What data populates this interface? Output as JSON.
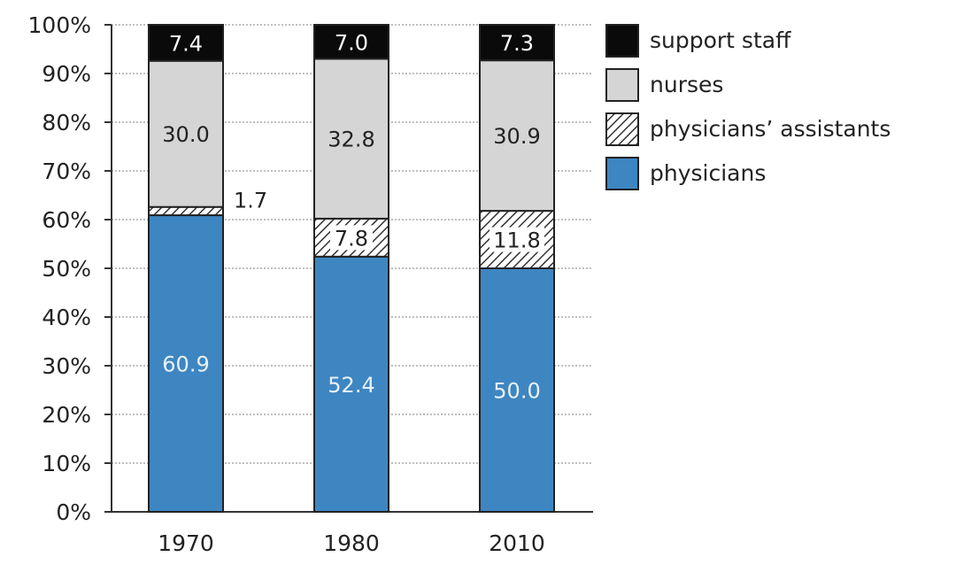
{
  "chart_data": {
    "type": "bar",
    "stacked": true,
    "categories": [
      "1970",
      "1980",
      "2010"
    ],
    "series": [
      {
        "name": "physicians",
        "values": [
          60.9,
          52.4,
          50.0
        ],
        "labels": [
          "60.9",
          "52.4",
          "50.0"
        ],
        "color": "#3e86c1",
        "pattern": "solid",
        "label_color": "#e8f1fa"
      },
      {
        "name": "physicians’ assistants",
        "values": [
          1.7,
          7.8,
          11.8
        ],
        "labels": [
          "1.7",
          "7.8",
          "11.8"
        ],
        "color": "#ffffff",
        "pattern": "hatch",
        "label_color": "#222222"
      },
      {
        "name": "nurses",
        "values": [
          30.0,
          32.8,
          30.9
        ],
        "labels": [
          "30.0",
          "32.8",
          "30.9"
        ],
        "color": "#d5d5d5",
        "pattern": "solid",
        "label_color": "#222222"
      },
      {
        "name": "support staff",
        "values": [
          7.4,
          7.0,
          7.3
        ],
        "labels": [
          "7.4",
          "7.0",
          "7.3"
        ],
        "color": "#0a0a0a",
        "pattern": "solid",
        "label_color": "#ffffff"
      }
    ],
    "ylim": [
      0,
      100
    ],
    "yticks": [
      "0%",
      "10%",
      "20%",
      "30%",
      "40%",
      "50%",
      "60%",
      "70%",
      "80%",
      "90%",
      "100%"
    ],
    "grid": true,
    "legend_position": "right",
    "legend_order": [
      "support staff",
      "nurses",
      "physicians’ assistants",
      "physicians"
    ]
  }
}
